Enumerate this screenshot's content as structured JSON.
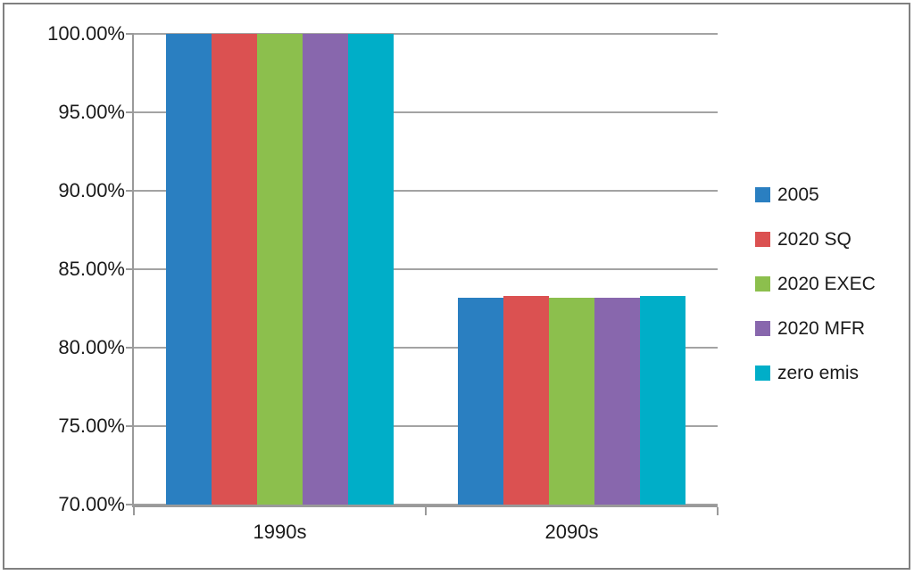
{
  "chart_data": {
    "type": "bar",
    "title": "",
    "xlabel": "",
    "ylabel": "",
    "categories": [
      "1990s",
      "2090s"
    ],
    "series": [
      {
        "name": "2005",
        "color": "#2A7FC1",
        "values": [
          100.0,
          83.2
        ]
      },
      {
        "name": "2020 SQ",
        "color": "#DB5151",
        "values": [
          100.0,
          83.3
        ]
      },
      {
        "name": "2020 EXEC",
        "color": "#8CBF4D",
        "values": [
          100.0,
          83.2
        ]
      },
      {
        "name": "2020 MFR",
        "color": "#8867AD",
        "values": [
          100.0,
          83.2
        ]
      },
      {
        "name": "zero emis",
        "color": "#00AEC8",
        "values": [
          100.0,
          83.3
        ]
      }
    ],
    "y_axis": {
      "min": 70,
      "max": 100,
      "step": 5,
      "tick_labels": [
        "100.00%",
        "95.00%",
        "90.00%",
        "85.00%",
        "80.00%",
        "75.00%",
        "70.00%"
      ]
    },
    "grid": true,
    "legend_position": "right"
  },
  "style_colors": {
    "frame_border": "#808080",
    "gridline": "#a3a3a3",
    "axis": "#9a9a9a",
    "text": "#1a1a1a",
    "background": "#ffffff"
  }
}
